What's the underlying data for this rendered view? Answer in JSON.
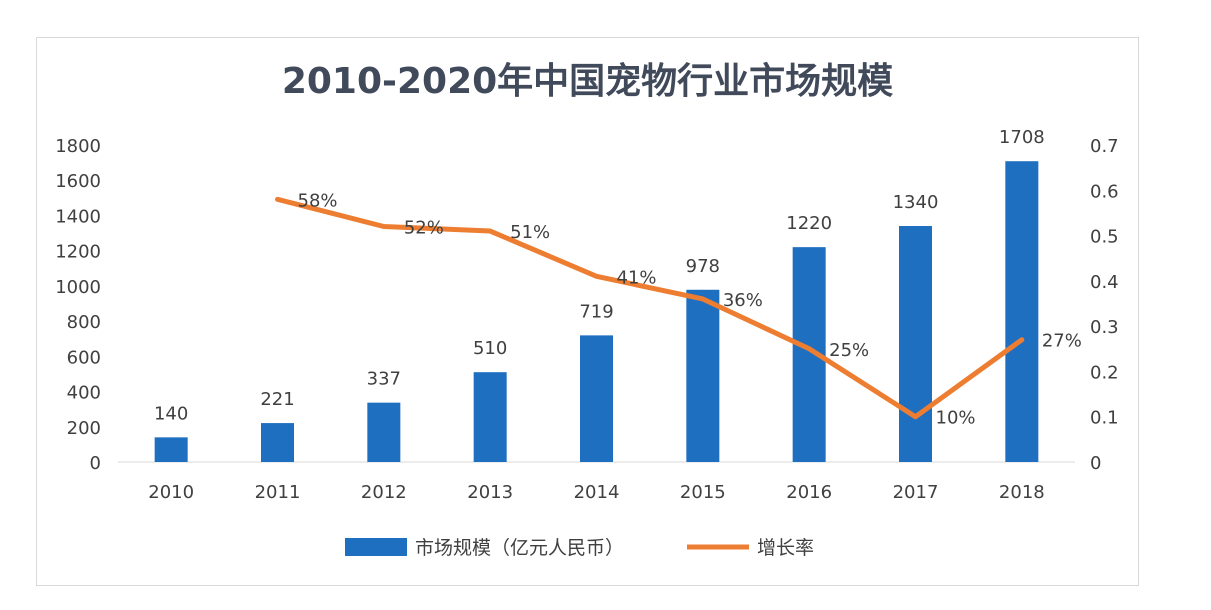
{
  "chart_data": {
    "type": "bar",
    "title": "2010-2020年中国宠物行业市场规模",
    "categories": [
      "2010",
      "2011",
      "2012",
      "2013",
      "2014",
      "2015",
      "2016",
      "2017",
      "2018"
    ],
    "series": [
      {
        "name": "市场规模（亿元人民币）",
        "type": "bar",
        "axis": "left",
        "values": [
          140,
          221,
          337,
          510,
          719,
          978,
          1220,
          1340,
          1708
        ],
        "labels": [
          "140",
          "221",
          "337",
          "510",
          "719",
          "978",
          "1220",
          "1340",
          "1708"
        ]
      },
      {
        "name": "增长率",
        "type": "line",
        "axis": "right",
        "values": [
          null,
          0.58,
          0.52,
          0.51,
          0.41,
          0.36,
          0.25,
          0.1,
          0.27
        ],
        "labels": [
          "",
          "58%",
          "52%",
          "51%",
          "41%",
          "36%",
          "25%",
          "10%",
          "27%"
        ]
      }
    ],
    "y_left": {
      "ylim": [
        0,
        1800
      ],
      "ticks": [
        "0",
        "200",
        "400",
        "600",
        "800",
        "1000",
        "1200",
        "1400",
        "1600",
        "1800"
      ]
    },
    "y_right": {
      "ylim": [
        0,
        0.7
      ],
      "ticks": [
        "0",
        "0.1",
        "0.2",
        "0.3",
        "0.4",
        "0.5",
        "0.6",
        "0.7"
      ]
    },
    "legend_position": "bottom-center"
  },
  "colors": {
    "bar": "#1f6fc0",
    "line": "#ed7d31",
    "title": "#404a5a",
    "text": "#404040"
  }
}
